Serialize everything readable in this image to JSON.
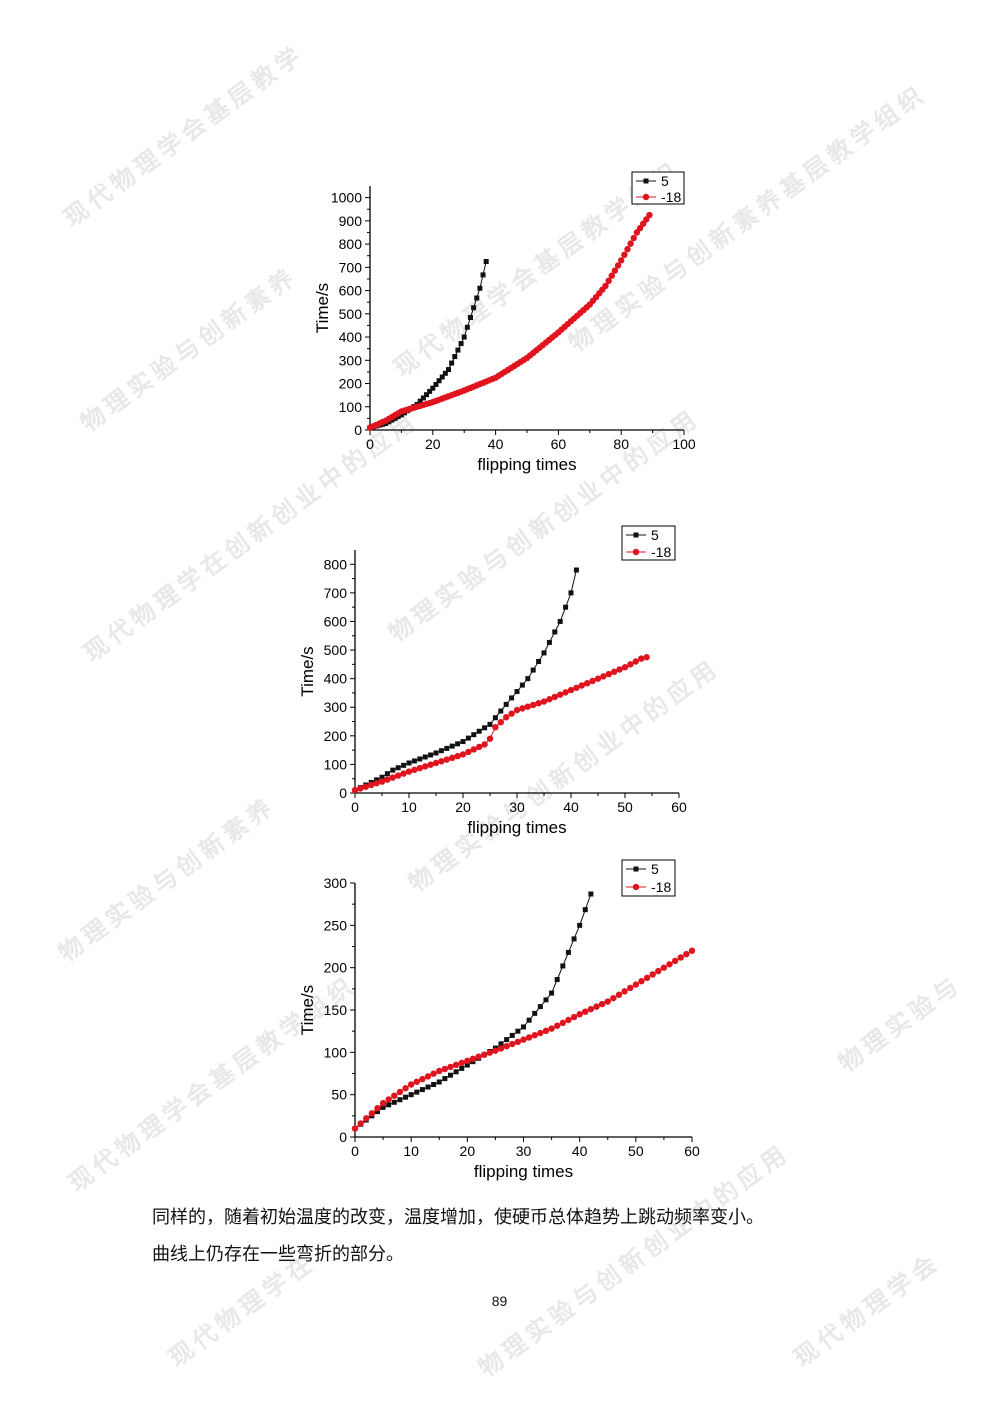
{
  "page": {
    "paragraph_lines": [
      "同样的，随着初始温度的改变，温度增加，使硬币总体趋势上跳动频率变小。",
      "曲线上仍存在一些弯折的部分。"
    ],
    "page_number": "89",
    "watermark_texts": [
      "现代物理学会基层教学",
      "现代物理学会基层教学组织",
      "物理实验与创新素养基层教学组织",
      "物理实验与创新素养",
      "物理实验与创新创业中的应用",
      "现代物理学在创新创业中的应用",
      "物理实验与创新素养",
      "物理实验与创新创业中的应用",
      "物理实验与",
      "现代物理学会基层教学组织",
      "物理实验与创新创业中的应用",
      "现代物理学在",
      "现代物理学会"
    ]
  },
  "colors": {
    "series_5": "#111111",
    "series_m18": "#e0141e",
    "axis": "#000000"
  },
  "chart_data": [
    {
      "type": "line",
      "xlabel": "flipping times",
      "ylabel": "Time/s",
      "xlim": [
        0,
        100
      ],
      "ylim": [
        0,
        1050
      ],
      "xticks": [
        0,
        20,
        40,
        60,
        80,
        100
      ],
      "yticks": [
        0,
        100,
        200,
        300,
        400,
        500,
        600,
        700,
        800,
        900,
        1000
      ],
      "xtick_labels": [
        "0",
        "20",
        "40",
        "60",
        "80",
        "100"
      ],
      "ytick_labels": [
        "0",
        "100",
        "200",
        "300",
        "400",
        "500",
        "600",
        "700",
        "800",
        "900",
        "1000"
      ],
      "legend": [
        "5",
        "-18"
      ],
      "series": [
        {
          "name": "5",
          "marker": "square",
          "anchors": [
            [
              0,
              10
            ],
            [
              5,
              28
            ],
            [
              10,
              65
            ],
            [
              15,
              110
            ],
            [
              20,
              180
            ],
            [
              25,
              260
            ],
            [
              30,
              400
            ],
            [
              35,
              610
            ],
            [
              37,
              725
            ]
          ]
        },
        {
          "name": "-18",
          "marker": "circle",
          "anchors": [
            [
              0,
              10
            ],
            [
              5,
              40
            ],
            [
              10,
              80
            ],
            [
              20,
              120
            ],
            [
              30,
              170
            ],
            [
              40,
              225
            ],
            [
              50,
              310
            ],
            [
              60,
              420
            ],
            [
              70,
              540
            ],
            [
              75,
              620
            ],
            [
              80,
              730
            ],
            [
              85,
              850
            ],
            [
              89,
              925
            ]
          ]
        }
      ]
    },
    {
      "type": "line",
      "xlabel": "flipping times",
      "ylabel": "Time/s",
      "xlim": [
        0,
        60
      ],
      "ylim": [
        0,
        850
      ],
      "xticks": [
        0,
        10,
        20,
        30,
        40,
        50,
        60
      ],
      "yticks": [
        0,
        100,
        200,
        300,
        400,
        500,
        600,
        700,
        800
      ],
      "xtick_labels": [
        "0",
        "10",
        "20",
        "30",
        "40",
        "50",
        "60"
      ],
      "ytick_labels": [
        "0",
        "100",
        "200",
        "300",
        "400",
        "500",
        "600",
        "700",
        "800"
      ],
      "legend": [
        "5",
        "-18"
      ],
      "series": [
        {
          "name": "5",
          "marker": "square",
          "anchors": [
            [
              0,
              10
            ],
            [
              5,
              55
            ],
            [
              7,
              80
            ],
            [
              10,
              105
            ],
            [
              15,
              140
            ],
            [
              20,
              180
            ],
            [
              25,
              240
            ],
            [
              28,
              310
            ],
            [
              32,
              400
            ],
            [
              35,
              490
            ],
            [
              38,
              600
            ],
            [
              40,
              700
            ],
            [
              41,
              780
            ]
          ]
        },
        {
          "name": "-18",
          "marker": "circle",
          "anchors": [
            [
              0,
              10
            ],
            [
              5,
              40
            ],
            [
              10,
              75
            ],
            [
              15,
              105
            ],
            [
              20,
              135
            ],
            [
              24,
              170
            ],
            [
              25,
              190
            ],
            [
              26,
              230
            ],
            [
              28,
              265
            ],
            [
              30,
              290
            ],
            [
              35,
              320
            ],
            [
              40,
              360
            ],
            [
              45,
              400
            ],
            [
              50,
              440
            ],
            [
              53,
              470
            ],
            [
              54,
              475
            ]
          ]
        }
      ]
    },
    {
      "type": "line",
      "xlabel": "flipping times",
      "ylabel": "Time/s",
      "xlim": [
        0,
        60
      ],
      "ylim": [
        0,
        300
      ],
      "xticks": [
        0,
        10,
        20,
        30,
        40,
        50,
        60
      ],
      "yticks": [
        0,
        50,
        100,
        150,
        200,
        250,
        300
      ],
      "xtick_labels": [
        "0",
        "10",
        "20",
        "30",
        "40",
        "50",
        "60"
      ],
      "ytick_labels": [
        "0",
        "50",
        "100",
        "150",
        "200",
        "250",
        "300"
      ],
      "legend": [
        "5",
        "-18"
      ],
      "series": [
        {
          "name": "5",
          "marker": "square",
          "anchors": [
            [
              0,
              10
            ],
            [
              5,
              35
            ],
            [
              10,
              50
            ],
            [
              15,
              65
            ],
            [
              20,
              85
            ],
            [
              25,
              105
            ],
            [
              30,
              130
            ],
            [
              35,
              170
            ],
            [
              40,
              250
            ],
            [
              42,
              287
            ]
          ]
        },
        {
          "name": "-18",
          "marker": "circle",
          "anchors": [
            [
              0,
              10
            ],
            [
              5,
              40
            ],
            [
              10,
              62
            ],
            [
              15,
              78
            ],
            [
              20,
              90
            ],
            [
              25,
              102
            ],
            [
              30,
              115
            ],
            [
              35,
              128
            ],
            [
              40,
              145
            ],
            [
              45,
              160
            ],
            [
              50,
              180
            ],
            [
              55,
              200
            ],
            [
              60,
              220
            ]
          ]
        }
      ]
    }
  ]
}
